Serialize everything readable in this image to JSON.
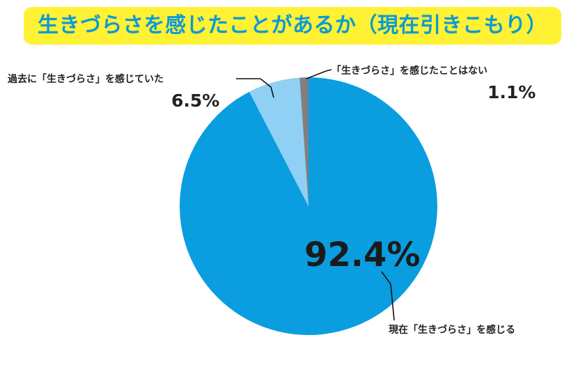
{
  "title": "生きづらさを感じたことがあるか（現在引きこもり）",
  "colors": {
    "banner_background": "#fff133",
    "title_text": "#0a9ad9",
    "leader_line": "#111111"
  },
  "chart_data": {
    "type": "pie",
    "title": "生きづらさを感じたことがあるか（現在引きこもり）",
    "start": "12 o'clock",
    "direction": "clockwise",
    "legend": "none",
    "slices": [
      {
        "label": "現在「生きづらさ」を感じる",
        "value": 92.4,
        "display": "92.4%",
        "color": "#0a9ee0"
      },
      {
        "label": "過去に「生きづらさ」を感じていた",
        "value": 6.5,
        "display": "6.5%",
        "color": "#8fd0f4"
      },
      {
        "label": "「生きづらさ」を感じたことはない",
        "value": 1.1,
        "display": "1.1%",
        "color": "#808080"
      }
    ]
  }
}
